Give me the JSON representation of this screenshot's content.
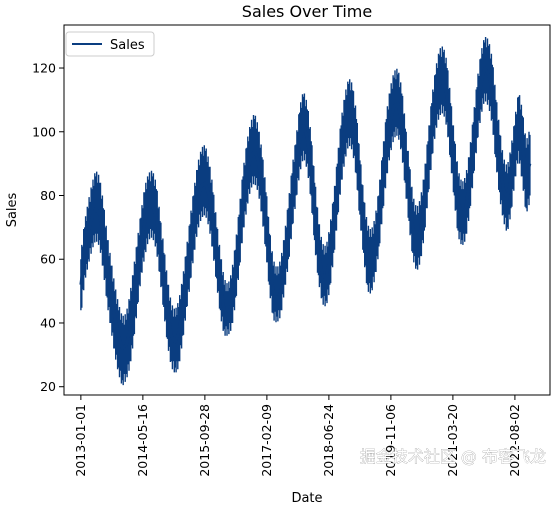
{
  "chart_data": {
    "type": "line",
    "title": "Sales Over Time",
    "xlabel": "Date",
    "ylabel": "Sales",
    "ylim": [
      17.4,
      133.5
    ],
    "xlim": [
      "2012-08-18",
      "2023-05-12"
    ],
    "grid": false,
    "legend": {
      "position": "top-left",
      "entries": [
        "Sales"
      ]
    },
    "x_ticks": [
      "2013-01-01",
      "2014-05-16",
      "2015-09-28",
      "2017-02-09",
      "2018-06-24",
      "2019-11-06",
      "2021-03-20",
      "2022-08-02"
    ],
    "y_ticks": [
      20,
      40,
      60,
      80,
      100,
      120
    ],
    "series": [
      {
        "name": "Sales",
        "color": "#0a3d80",
        "x": [
          "2013-01-01",
          "2013-02-01",
          "2013-03-01",
          "2013-04-01",
          "2013-05-01",
          "2013-06-01",
          "2013-07-01",
          "2013-08-01",
          "2013-09-01",
          "2013-10-01",
          "2013-11-01",
          "2013-12-01",
          "2014-01-01",
          "2014-02-01",
          "2014-03-01",
          "2014-04-01",
          "2014-05-01",
          "2014-06-01",
          "2014-07-01",
          "2014-08-01",
          "2014-09-01",
          "2014-10-01",
          "2014-11-01",
          "2014-12-01",
          "2015-01-01",
          "2015-02-01",
          "2015-03-01",
          "2015-04-01",
          "2015-05-01",
          "2015-06-01",
          "2015-07-01",
          "2015-08-01",
          "2015-09-01",
          "2015-10-01",
          "2015-11-01",
          "2015-12-01",
          "2016-01-01",
          "2016-02-01",
          "2016-03-01",
          "2016-04-01",
          "2016-05-01",
          "2016-06-01",
          "2016-07-01",
          "2016-08-01",
          "2016-09-01",
          "2016-10-01",
          "2016-11-01",
          "2016-12-01",
          "2017-01-01",
          "2017-02-01",
          "2017-03-01",
          "2017-04-01",
          "2017-05-01",
          "2017-06-01",
          "2017-07-01",
          "2017-08-01",
          "2017-09-01",
          "2017-10-01",
          "2017-11-01",
          "2017-12-01",
          "2018-01-01",
          "2018-02-01",
          "2018-03-01",
          "2018-04-01",
          "2018-05-01",
          "2018-06-01",
          "2018-07-01",
          "2018-08-01",
          "2018-09-01",
          "2018-10-01",
          "2018-11-01",
          "2018-12-01",
          "2019-01-01",
          "2019-02-01",
          "2019-03-01",
          "2019-04-01",
          "2019-05-01",
          "2019-06-01",
          "2019-07-01",
          "2019-08-01",
          "2019-09-01",
          "2019-10-01",
          "2019-11-01",
          "2019-12-01",
          "2020-01-01",
          "2020-02-01",
          "2020-03-01",
          "2020-04-01",
          "2020-05-01",
          "2020-06-01",
          "2020-07-01",
          "2020-08-01",
          "2020-09-01",
          "2020-10-01",
          "2020-11-01",
          "2020-12-01",
          "2021-01-01",
          "2021-02-01",
          "2021-03-01",
          "2021-04-01",
          "2021-05-01",
          "2021-06-01",
          "2021-07-01",
          "2021-08-01",
          "2021-09-01",
          "2021-10-01",
          "2021-11-01",
          "2021-12-01",
          "2022-01-01",
          "2022-02-01",
          "2022-03-01",
          "2022-04-01",
          "2022-05-01",
          "2022-06-01",
          "2022-07-01",
          "2022-08-01",
          "2022-09-01",
          "2022-10-01",
          "2022-11-01",
          "2022-12-01"
        ],
        "y": [
          52,
          62,
          68,
          73,
          76,
          74,
          66,
          58,
          50,
          42,
          36,
          32,
          33,
          38,
          46,
          55,
          64,
          72,
          76,
          77,
          73,
          64,
          54,
          44,
          36,
          34,
          37,
          44,
          53,
          62,
          71,
          79,
          83,
          84,
          80,
          72,
          62,
          52,
          44,
          42,
          46,
          55,
          66,
          77,
          86,
          92,
          94,
          91,
          83,
          72,
          60,
          50,
          47,
          50,
          58,
          68,
          79,
          88,
          97,
          102,
          98,
          88,
          75,
          63,
          55,
          54,
          60,
          70,
          82,
          93,
          101,
          106,
          104,
          95,
          82,
          70,
          61,
          59,
          63,
          72,
          84,
          95,
          103,
          108,
          109,
          103,
          92,
          80,
          70,
          66,
          69,
          77,
          89,
          101,
          110,
          115,
          116,
          111,
          100,
          88,
          78,
          74,
          76,
          84,
          95,
          106,
          115,
          120,
          118,
          112,
          101,
          90,
          82,
          79,
          85,
          94,
          103,
          96,
          86,
          90
        ],
        "low": [
          44,
          55,
          60,
          65,
          68,
          66,
          58,
          48,
          40,
          32,
          26,
          22,
          24,
          28,
          36,
          46,
          56,
          63,
          68,
          69,
          65,
          56,
          45,
          35,
          28,
          26,
          28,
          36,
          45,
          54,
          63,
          71,
          75,
          76,
          72,
          64,
          54,
          44,
          38,
          38,
          40,
          48,
          58,
          70,
          78,
          84,
          86,
          83,
          75,
          64,
          52,
          43,
          42,
          44,
          52,
          60,
          71,
          80,
          89,
          94,
          90,
          80,
          66,
          55,
          48,
          47,
          52,
          62,
          74,
          85,
          93,
          98,
          96,
          87,
          74,
          62,
          52,
          51,
          56,
          64,
          76,
          87,
          95,
          100,
          101,
          95,
          84,
          72,
          62,
          58,
          61,
          69,
          81,
          93,
          102,
          107,
          108,
          103,
          92,
          80,
          69,
          66,
          68,
          76,
          87,
          98,
          107,
          112,
          110,
          104,
          92,
          81,
          74,
          70,
          76,
          86,
          94,
          86,
          76,
          80
        ],
        "high": [
          60,
          70,
          76,
          82,
          86,
          84,
          76,
          66,
          58,
          50,
          44,
          40,
          41,
          47,
          55,
          64,
          73,
          81,
          85,
          86,
          82,
          72,
          62,
          52,
          44,
          42,
          45,
          52,
          61,
          71,
          80,
          88,
          93,
          94,
          89,
          81,
          70,
          60,
          52,
          50,
          54,
          63,
          74,
          86,
          95,
          101,
          104,
          100,
          92,
          81,
          68,
          58,
          55,
          58,
          66,
          76,
          87,
          96,
          106,
          111,
          107,
          97,
          84,
          71,
          63,
          62,
          68,
          78,
          90,
          102,
          110,
          115,
          113,
          104,
          91,
          78,
          69,
          67,
          71,
          80,
          92,
          104,
          112,
          117,
          118,
          112,
          101,
          89,
          78,
          74,
          77,
          85,
          97,
          109,
          118,
          124,
          125,
          120,
          109,
          97,
          86,
          82,
          84,
          92,
          103,
          114,
          123,
          128,
          127,
          121,
          110,
          99,
          90,
          87,
          93,
          102,
          111,
          105,
          95,
          99
        ]
      }
    ]
  },
  "watermark": "掘金技术社区 @ 布客飞龙"
}
